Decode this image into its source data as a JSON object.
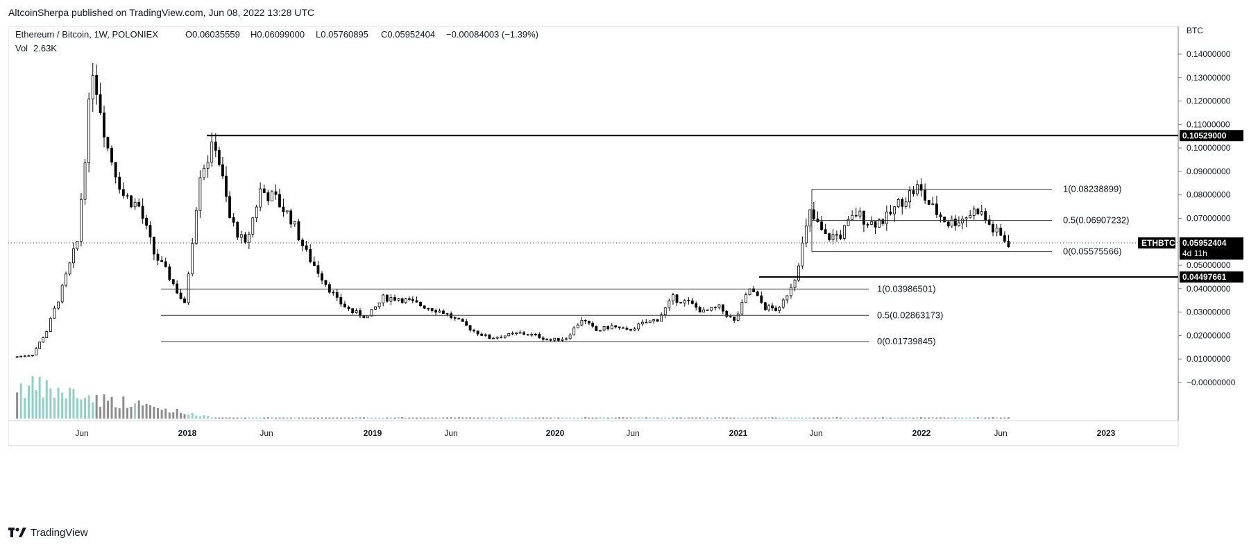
{
  "header": {
    "published_line": "AltcoinSherpa published on TradingView.com, Jun 08, 2022 13:28 UTC"
  },
  "legend": {
    "symbol_line": "Ethereum / Bitcoin, 1W, POLONIEX",
    "open": "O0.06035559",
    "high": "H0.06099000",
    "low": "L0.05760895",
    "close": "C0.05952404",
    "change": "−0.00084003 (−1.39%)",
    "vol_label": "Vol",
    "vol_value": "2.63K"
  },
  "price_axis": {
    "unit": "BTC",
    "ticks": [
      "0.14000000",
      "0.13000000",
      "0.12000000",
      "0.11000000",
      "0.10000000",
      "0.09000000",
      "0.08000000",
      "0.07000000",
      "0.06000000",
      "0.05000000",
      "0.04000000",
      "0.03000000",
      "0.02000000",
      "0.01000000",
      "−0.00000000"
    ],
    "badges": {
      "resistance": "0.10529000",
      "support": "0.04497661",
      "last_price": "0.05952404",
      "countdown": "4d 11h",
      "symbol": "ETHBTC"
    }
  },
  "time_axis": {
    "labels": [
      "Jun",
      "2018",
      "Jun",
      "2019",
      "Jun",
      "2020",
      "Jun",
      "2021",
      "Jun",
      "2022",
      "Jun",
      "2023"
    ]
  },
  "fib_annotations": {
    "right_fib": [
      "1(0.08238899)",
      "0.5(0.06907232)",
      "0(0.05575566)"
    ],
    "left_fib": [
      "1(0.03986501)",
      "0.5(0.02863173)",
      "0(0.01739845)"
    ]
  },
  "colors": {
    "up_volume": "#8fd0c7",
    "down_volume": "#8c8c8c",
    "candle_up_fill": "#ffffff",
    "candle_down_fill": "#000000",
    "badge_bg": "#000000",
    "grid": "#e0e3eb"
  },
  "footer": {
    "brand": "TradingView",
    "logo_icon": "tradingview-logo-icon"
  },
  "chart_data": {
    "type": "candlestick",
    "title": "Ethereum / Bitcoin, 1W, POLONIEX",
    "ylabel": "BTC",
    "ylim": [
      -0.004,
      0.15
    ],
    "x_range": [
      "2017-01",
      "2023-06"
    ],
    "horizontal_levels": [
      0.10529,
      0.04497661
    ],
    "fib_right": {
      "x_start": "2021-05",
      "x_end": "2022-06",
      "levels": [
        0.08238899,
        0.06907232,
        0.05575566
      ]
    },
    "fib_left": {
      "x_start": "2017-12",
      "x_end": "2021-06",
      "levels": [
        0.03986501,
        0.02863173,
        0.01739845
      ]
    },
    "last_price": 0.05952404,
    "series": [
      {
        "name": "ETHBTC",
        "points": [
          {
            "date": "2017-01",
            "close": 0.011
          },
          {
            "date": "2017-02",
            "close": 0.012
          },
          {
            "date": "2017-03",
            "close": 0.022
          },
          {
            "date": "2017-04",
            "close": 0.04
          },
          {
            "date": "2017-05",
            "close": 0.06
          },
          {
            "date": "2017-06",
            "close": 0.135
          },
          {
            "date": "2017-07",
            "close": 0.1
          },
          {
            "date": "2017-08",
            "close": 0.08
          },
          {
            "date": "2017-09",
            "close": 0.075
          },
          {
            "date": "2017-10",
            "close": 0.055
          },
          {
            "date": "2017-11",
            "close": 0.045
          },
          {
            "date": "2017-12",
            "close": 0.033
          },
          {
            "date": "2018-01",
            "close": 0.09
          },
          {
            "date": "2018-02",
            "close": 0.102
          },
          {
            "date": "2018-03",
            "close": 0.07
          },
          {
            "date": "2018-04",
            "close": 0.058
          },
          {
            "date": "2018-05",
            "close": 0.082
          },
          {
            "date": "2018-06",
            "close": 0.078
          },
          {
            "date": "2018-07",
            "close": 0.07
          },
          {
            "date": "2018-08",
            "close": 0.055
          },
          {
            "date": "2018-09",
            "close": 0.045
          },
          {
            "date": "2018-10",
            "close": 0.035
          },
          {
            "date": "2018-11",
            "close": 0.03
          },
          {
            "date": "2018-12",
            "close": 0.028
          },
          {
            "date": "2019-01",
            "close": 0.036
          },
          {
            "date": "2019-02",
            "close": 0.036
          },
          {
            "date": "2019-03",
            "close": 0.034
          },
          {
            "date": "2019-04",
            "close": 0.032
          },
          {
            "date": "2019-05",
            "close": 0.03
          },
          {
            "date": "2019-06",
            "close": 0.026
          },
          {
            "date": "2019-07",
            "close": 0.022
          },
          {
            "date": "2019-08",
            "close": 0.019
          },
          {
            "date": "2019-09",
            "close": 0.02
          },
          {
            "date": "2019-10",
            "close": 0.021
          },
          {
            "date": "2019-11",
            "close": 0.02
          },
          {
            "date": "2019-12",
            "close": 0.018
          },
          {
            "date": "2020-01",
            "close": 0.019
          },
          {
            "date": "2020-02",
            "close": 0.027
          },
          {
            "date": "2020-03",
            "close": 0.022
          },
          {
            "date": "2020-04",
            "close": 0.024
          },
          {
            "date": "2020-05",
            "close": 0.022
          },
          {
            "date": "2020-06",
            "close": 0.025
          },
          {
            "date": "2020-07",
            "close": 0.027
          },
          {
            "date": "2020-08",
            "close": 0.036
          },
          {
            "date": "2020-09",
            "close": 0.034
          },
          {
            "date": "2020-10",
            "close": 0.03
          },
          {
            "date": "2020-11",
            "close": 0.032
          },
          {
            "date": "2020-12",
            "close": 0.026
          },
          {
            "date": "2021-01",
            "close": 0.04
          },
          {
            "date": "2021-02",
            "close": 0.032
          },
          {
            "date": "2021-03",
            "close": 0.031
          },
          {
            "date": "2021-04",
            "close": 0.045
          },
          {
            "date": "2021-05",
            "close": 0.072
          },
          {
            "date": "2021-06",
            "close": 0.062
          },
          {
            "date": "2021-07",
            "close": 0.063
          },
          {
            "date": "2021-08",
            "close": 0.072
          },
          {
            "date": "2021-09",
            "close": 0.068
          },
          {
            "date": "2021-10",
            "close": 0.07
          },
          {
            "date": "2021-11",
            "close": 0.078
          },
          {
            "date": "2021-12",
            "close": 0.083
          },
          {
            "date": "2022-01",
            "close": 0.074
          },
          {
            "date": "2022-02",
            "close": 0.068
          },
          {
            "date": "2022-03",
            "close": 0.07
          },
          {
            "date": "2022-04",
            "close": 0.074
          },
          {
            "date": "2022-05",
            "close": 0.065
          },
          {
            "date": "2022-06",
            "close": 0.0595
          }
        ]
      }
    ]
  }
}
